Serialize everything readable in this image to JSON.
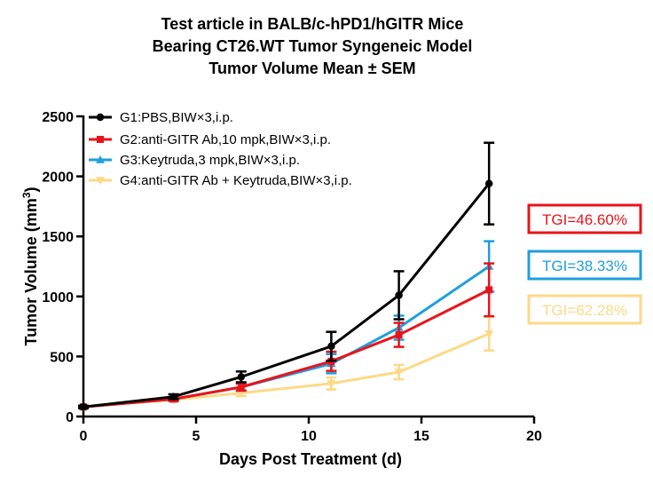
{
  "chart_data": {
    "type": "line",
    "title_lines": [
      "Test article in  BALB/c-hPD1/hGITR Mice",
      "Bearing CT26.WT Tumor Syngeneic Model",
      "Tumor Volume Mean ± SEM"
    ],
    "xlabel": "Days Post Treatment (d)",
    "ylabel_main": "Tumor Volume (mm",
    "ylabel_sup": "3",
    "ylabel_end": ")",
    "xlim": [
      0,
      20
    ],
    "ylim": [
      0,
      2500
    ],
    "x_ticks": [
      "0",
      "5",
      "10",
      "15",
      "20"
    ],
    "y_ticks": [
      "0",
      "500",
      "1000",
      "1500",
      "2000",
      "2500"
    ],
    "series": [
      {
        "name": "G1:PBS,BIW×3,i.p.",
        "color": "#000000",
        "marker": "circle",
        "x": [
          0,
          4,
          7,
          11,
          14,
          18
        ],
        "values": [
          80,
          165,
          330,
          585,
          1010,
          1940
        ],
        "errors": [
          10,
          20,
          45,
          120,
          200,
          340
        ]
      },
      {
        "name": "G2:anti-GITR Ab,10 mpk,BIW×3,i.p.",
        "color": "#e8141b",
        "marker": "square",
        "x": [
          0,
          4,
          7,
          11,
          14,
          18
        ],
        "values": [
          80,
          145,
          245,
          460,
          680,
          1055
        ],
        "errors": [
          10,
          15,
          30,
          80,
          100,
          220
        ]
      },
      {
        "name": "G3:Keytruda,3 mpk,BIW×3,i.p.",
        "color": "#1f9ee0",
        "marker": "triangle-up",
        "x": [
          0,
          4,
          7,
          11,
          14,
          18
        ],
        "values": [
          80,
          145,
          245,
          440,
          740,
          1250
        ],
        "errors": [
          10,
          15,
          30,
          80,
          100,
          210
        ]
      },
      {
        "name": "G4:anti-GITR Ab + Keytruda,BIW×3,i.p.",
        "color": "#fdd987",
        "marker": "triangle-down",
        "x": [
          0,
          4,
          7,
          11,
          14,
          18
        ],
        "values": [
          80,
          140,
          195,
          275,
          370,
          690
        ],
        "errors": [
          10,
          15,
          25,
          50,
          60,
          140
        ]
      }
    ],
    "annotations": [
      {
        "text": "TGI=46.60%",
        "color": "#e8141b"
      },
      {
        "text": "TGI=38.33%",
        "color": "#1f9ee0"
      },
      {
        "text": "TGI=62.28%",
        "color": "#fdd987"
      }
    ]
  }
}
